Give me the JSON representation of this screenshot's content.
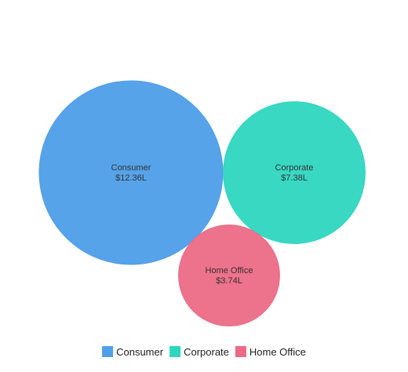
{
  "chart_data": {
    "type": "bubble",
    "series": [
      {
        "name": "Consumer",
        "label": "$12.36L",
        "value": 12.36,
        "color": "#4e9ee8"
      },
      {
        "name": "Corporate",
        "label": "$7.38L",
        "value": 7.38,
        "color": "#2ed6c0"
      },
      {
        "name": "Home Office",
        "label": "$3.74L",
        "value": 3.74,
        "color": "#ec6a85"
      }
    ],
    "legend": {
      "position": "bottom",
      "marker": "square"
    },
    "title": ""
  }
}
